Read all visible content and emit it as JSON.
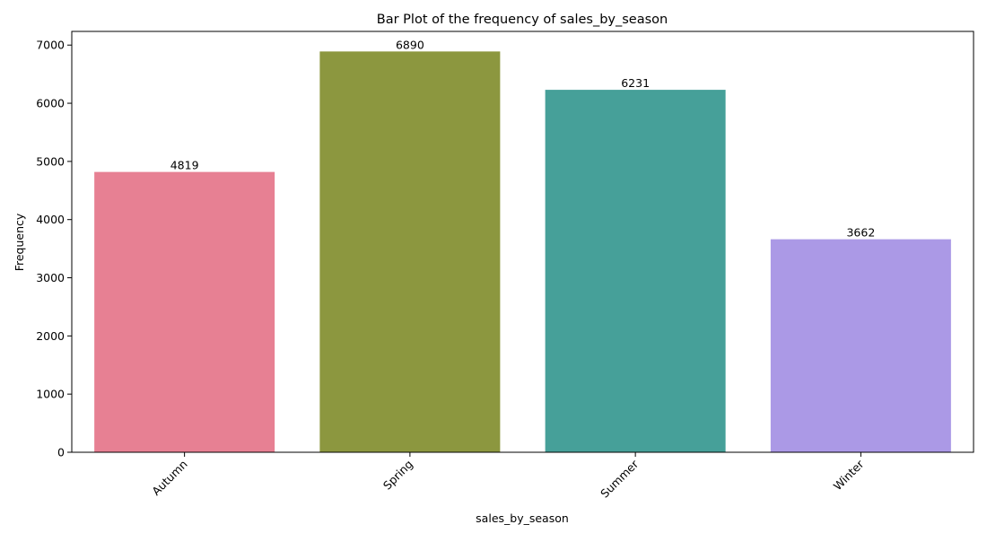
{
  "chart_data": {
    "type": "bar",
    "title": "Bar Plot of the frequency of sales_by_season",
    "xlabel": "sales_by_season",
    "ylabel": "Frequency",
    "categories": [
      "Autumn",
      "Spring",
      "Summer",
      "Winter"
    ],
    "values": [
      4819,
      6890,
      6231,
      3662
    ],
    "data_labels": [
      "4819",
      "6890",
      "6231",
      "3662"
    ],
    "colors": [
      "#e78093",
      "#8c973f",
      "#46a099",
      "#ab99e6"
    ],
    "ylim": [
      0,
      7235
    ],
    "yticks": [
      0,
      1000,
      2000,
      3000,
      4000,
      5000,
      6000,
      7000
    ],
    "ytick_labels": [
      "0",
      "1000",
      "2000",
      "3000",
      "4000",
      "5000",
      "6000",
      "7000"
    ],
    "xtick_rotation": -45,
    "grid": false,
    "legend": false
  }
}
